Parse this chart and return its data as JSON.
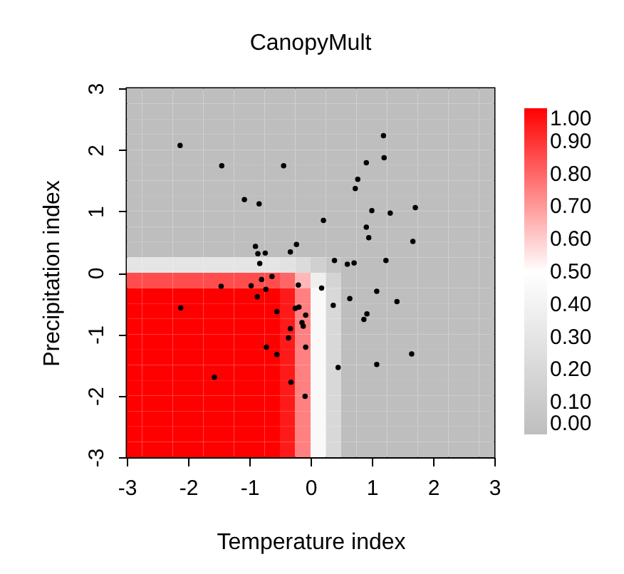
{
  "chart_data": {
    "type": "heatmap",
    "title": "CanopyMult",
    "xlabel": "Temperature index",
    "ylabel": "Precipitation index",
    "cells": [
      [
        0,
        0,
        0,
        0,
        0,
        0,
        0,
        0,
        0,
        0,
        0,
        0,
        0,
        0,
        0,
        0,
        0,
        0,
        0,
        0,
        0,
        0,
        0,
        0
      ],
      [
        0,
        0,
        0,
        0,
        0,
        0,
        0,
        0,
        0,
        0,
        0,
        0,
        0,
        0,
        0,
        0,
        0,
        0,
        0,
        0,
        0,
        0,
        0,
        0
      ],
      [
        0,
        0,
        0,
        0,
        0,
        0,
        0,
        0,
        0,
        0,
        0,
        0,
        0,
        0,
        0,
        0,
        0,
        0,
        0,
        0,
        0,
        0,
        0,
        0
      ],
      [
        0,
        0,
        0,
        0,
        0,
        0,
        0,
        0,
        0,
        0,
        0,
        0,
        0,
        0,
        0,
        0,
        0,
        0,
        0,
        0,
        0,
        0,
        0,
        0
      ],
      [
        0,
        0,
        0,
        0,
        0,
        0,
        0,
        0,
        0,
        0,
        0,
        0,
        0,
        0,
        0,
        0,
        0,
        0,
        0,
        0,
        0,
        0,
        0,
        0
      ],
      [
        0,
        0,
        0,
        0,
        0,
        0,
        0,
        0,
        0,
        0,
        0,
        0,
        0,
        0,
        0,
        0,
        0,
        0,
        0,
        0,
        0,
        0,
        0,
        0
      ],
      [
        0,
        0,
        0,
        0,
        0,
        0,
        0,
        0,
        0,
        0,
        0,
        0,
        0,
        0,
        0,
        0,
        0,
        0,
        0,
        0,
        0,
        0,
        0,
        0
      ],
      [
        0,
        0,
        0,
        0,
        0,
        0,
        0,
        0,
        0,
        0,
        0,
        0,
        0,
        0,
        0,
        0,
        0,
        0,
        0,
        0,
        0,
        0,
        0,
        0
      ],
      [
        0,
        0,
        0,
        0,
        0,
        0,
        0,
        0,
        0,
        0,
        0,
        0,
        0,
        0,
        0,
        0,
        0,
        0,
        0,
        0,
        0,
        0,
        0,
        0
      ],
      [
        0,
        0,
        0,
        0,
        0,
        0,
        0,
        0,
        0,
        0,
        0,
        0,
        0,
        0,
        0,
        0,
        0,
        0,
        0,
        0,
        0,
        0,
        0,
        0
      ],
      [
        0,
        0,
        0,
        0,
        0,
        0,
        0,
        0,
        0,
        0,
        0,
        0,
        0,
        0,
        0,
        0,
        0,
        0,
        0,
        0,
        0,
        0,
        0,
        0
      ],
      [
        0.3,
        0.3,
        0.3,
        0.3,
        0.3,
        0.3,
        0.3,
        0.3,
        0.3,
        0.3,
        0.28,
        0.22,
        0.14,
        0.06,
        0,
        0,
        0,
        0,
        0,
        0,
        0,
        0,
        0,
        0
      ],
      [
        0.85,
        0.85,
        0.85,
        0.85,
        0.85,
        0.85,
        0.85,
        0.85,
        0.85,
        0.85,
        0.8,
        0.64,
        0.38,
        0.17,
        0,
        0,
        0,
        0,
        0,
        0,
        0,
        0,
        0,
        0
      ],
      [
        1,
        1,
        1,
        1,
        1,
        1,
        1,
        1,
        1,
        1,
        0.95,
        0.75,
        0.45,
        0.2,
        0,
        0,
        0,
        0,
        0,
        0,
        0,
        0,
        0,
        0
      ],
      [
        1,
        1,
        1,
        1,
        1,
        1,
        1,
        1,
        1,
        1,
        0.95,
        0.75,
        0.45,
        0.2,
        0,
        0,
        0,
        0,
        0,
        0,
        0,
        0,
        0,
        0
      ],
      [
        1,
        1,
        1,
        1,
        1,
        1,
        1,
        1,
        1,
        1,
        0.95,
        0.75,
        0.45,
        0.2,
        0,
        0,
        0,
        0,
        0,
        0,
        0,
        0,
        0,
        0
      ],
      [
        1,
        1,
        1,
        1,
        1,
        1,
        1,
        1,
        1,
        1,
        0.95,
        0.75,
        0.45,
        0.2,
        0,
        0,
        0,
        0,
        0,
        0,
        0,
        0,
        0,
        0
      ],
      [
        1,
        1,
        1,
        1,
        1,
        1,
        1,
        1,
        1,
        1,
        0.95,
        0.75,
        0.45,
        0.2,
        0,
        0,
        0,
        0,
        0,
        0,
        0,
        0,
        0,
        0
      ],
      [
        1,
        1,
        1,
        1,
        1,
        1,
        1,
        1,
        1,
        1,
        0.95,
        0.75,
        0.45,
        0.2,
        0,
        0,
        0,
        0,
        0,
        0,
        0,
        0,
        0,
        0
      ],
      [
        1,
        1,
        1,
        1,
        1,
        1,
        1,
        1,
        1,
        1,
        0.95,
        0.75,
        0.45,
        0.2,
        0,
        0,
        0,
        0,
        0,
        0,
        0,
        0,
        0,
        0
      ],
      [
        1,
        1,
        1,
        1,
        1,
        1,
        1,
        1,
        1,
        1,
        0.95,
        0.75,
        0.45,
        0.2,
        0,
        0,
        0,
        0,
        0,
        0,
        0,
        0,
        0,
        0
      ],
      [
        1,
        1,
        1,
        1,
        1,
        1,
        1,
        1,
        1,
        1,
        0.95,
        0.75,
        0.45,
        0.2,
        0,
        0,
        0,
        0,
        0,
        0,
        0,
        0,
        0,
        0
      ],
      [
        1,
        1,
        1,
        1,
        1,
        1,
        1,
        1,
        1,
        1,
        0.95,
        0.75,
        0.45,
        0.2,
        0,
        0,
        0,
        0,
        0,
        0,
        0,
        0,
        0,
        0
      ],
      [
        1,
        1,
        1,
        1,
        1,
        1,
        1,
        1,
        1,
        1,
        0.95,
        0.75,
        0.45,
        0.2,
        0,
        0,
        0,
        0,
        0,
        0,
        0,
        0,
        0,
        0
      ]
    ],
    "colors": [
      "#bebebe",
      "#ffffff",
      "#ff0000"
    ],
    "clim": [
      0,
      1
    ],
    "cticks": [
      {
        "value": 0,
        "label": "0.00"
      },
      {
        "value": 0.1,
        "label": "0.10"
      },
      {
        "value": 0.2,
        "label": "0.20"
      },
      {
        "value": 0.3,
        "label": "0.30"
      },
      {
        "value": 0.4,
        "label": "0.40"
      },
      {
        "value": 0.5,
        "label": "0.50"
      },
      {
        "value": 0.6,
        "label": "0.60"
      },
      {
        "value": 0.7,
        "label": "0.70"
      },
      {
        "value": 0.8,
        "label": "0.80"
      },
      {
        "value": 0.9,
        "label": "0.90"
      },
      {
        "value": 1,
        "label": "1.00"
      }
    ],
    "xlim": [
      -3,
      3
    ],
    "ylim": [
      -3,
      3
    ],
    "xticks": [
      -3,
      -2,
      -1,
      0,
      1,
      2,
      3
    ],
    "yticks": [
      -3,
      -2,
      -1,
      0,
      1,
      2,
      3
    ],
    "series": [
      {
        "type": "scatter",
        "color": "#000000",
        "marker": "circle",
        "x": [
          -2.13,
          -1.45,
          -0.44,
          -1.08,
          -0.84,
          -0.9,
          -0.86,
          -0.74,
          -0.83,
          -0.23,
          -0.33,
          -0.63,
          1.19,
          1.2,
          0.91,
          0.77,
          0.73,
          0.21,
          1.0,
          1.3,
          1.71,
          0.91,
          0.95,
          1.67,
          0.39,
          0.6,
          0.71,
          1.23,
          -1.46,
          -0.97,
          -0.8,
          -0.73,
          -0.87,
          -0.2,
          -2.12,
          -0.55,
          -0.25,
          -0.19,
          -0.08,
          -0.14,
          -0.12,
          -0.33,
          -0.36,
          -0.08,
          -0.72,
          -0.55,
          -1.57,
          -0.32,
          -0.09,
          0.18,
          0.64,
          1.08,
          1.41,
          0.37,
          0.92,
          0.87,
          1.65,
          0.45,
          1.08
        ],
        "values": [
          2.07,
          1.74,
          1.74,
          1.19,
          1.12,
          0.43,
          0.31,
          0.32,
          0.15,
          0.46,
          0.34,
          -0.06,
          2.23,
          1.87,
          1.79,
          1.52,
          1.37,
          0.85,
          1.01,
          0.97,
          1.06,
          0.74,
          0.57,
          0.51,
          0.2,
          0.14,
          0.16,
          0.2,
          -0.22,
          -0.21,
          -0.11,
          -0.27,
          -0.39,
          -0.2,
          -0.57,
          -0.63,
          -0.58,
          -0.56,
          -0.69,
          -0.81,
          -0.87,
          -0.91,
          -1.06,
          -1.21,
          -1.21,
          -1.33,
          -1.7,
          -1.78,
          -2.01,
          -0.25,
          -0.42,
          -0.3,
          -0.47,
          -0.53,
          -0.67,
          -0.76,
          -1.32,
          -1.54,
          -1.49
        ]
      }
    ]
  }
}
